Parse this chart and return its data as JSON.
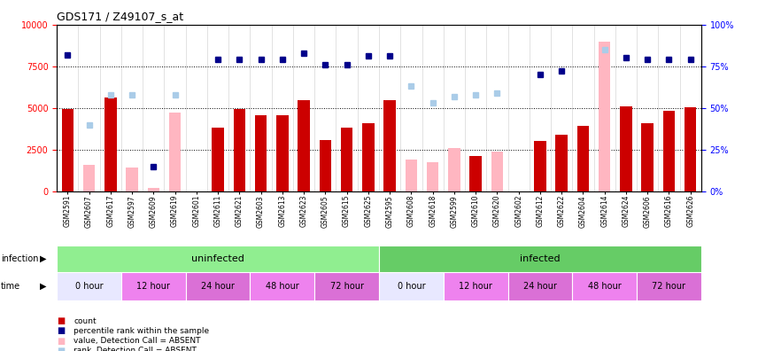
{
  "title": "GDS171 / Z49107_s_at",
  "samples": [
    "GSM2591",
    "GSM2607",
    "GSM2617",
    "GSM2597",
    "GSM2609",
    "GSM2619",
    "GSM2601",
    "GSM2611",
    "GSM2621",
    "GSM2603",
    "GSM2613",
    "GSM2623",
    "GSM2605",
    "GSM2615",
    "GSM2625",
    "GSM2595",
    "GSM2608",
    "GSM2618",
    "GSM2599",
    "GSM2610",
    "GSM2620",
    "GSM2602",
    "GSM2612",
    "GSM2622",
    "GSM2604",
    "GSM2614",
    "GSM2624",
    "GSM2606",
    "GSM2616",
    "GSM2626"
  ],
  "count_values": [
    4950,
    null,
    5600,
    null,
    null,
    null,
    null,
    3800,
    4950,
    4550,
    4550,
    5450,
    3050,
    3800,
    4100,
    5450,
    null,
    null,
    null,
    2100,
    null,
    null,
    3000,
    3400,
    3900,
    null,
    5100,
    4100,
    4850,
    5050
  ],
  "count_absent": [
    false,
    true,
    false,
    true,
    true,
    false,
    false,
    false,
    false,
    false,
    false,
    false,
    false,
    false,
    false,
    false,
    true,
    true,
    false,
    false,
    true,
    false,
    false,
    false,
    false,
    true,
    false,
    false,
    false,
    false
  ],
  "absent_bar_values": [
    null,
    1600,
    null,
    1450,
    200,
    4700,
    null,
    null,
    null,
    null,
    null,
    null,
    null,
    null,
    null,
    null,
    1900,
    1750,
    2600,
    null,
    2400,
    null,
    null,
    null,
    null,
    9000,
    null,
    null,
    null,
    null
  ],
  "rank_values": [
    8200,
    null,
    null,
    null,
    1500,
    null,
    null,
    7900,
    7900,
    7900,
    7900,
    8300,
    7600,
    7600,
    8100,
    8100,
    null,
    null,
    null,
    null,
    null,
    null,
    7000,
    7200,
    null,
    null,
    8000,
    7900,
    7900,
    7900
  ],
  "rank_absent": [
    false,
    true,
    true,
    true,
    false,
    true,
    false,
    false,
    false,
    false,
    false,
    false,
    false,
    false,
    false,
    false,
    true,
    true,
    true,
    true,
    true,
    false,
    false,
    false,
    false,
    true,
    false,
    false,
    false,
    false
  ],
  "absent_rank_values": [
    null,
    4000,
    5800,
    5800,
    null,
    5800,
    null,
    null,
    null,
    null,
    null,
    null,
    null,
    null,
    null,
    null,
    6300,
    5300,
    5700,
    5800,
    5900,
    null,
    null,
    null,
    null,
    8500,
    null,
    null,
    null,
    null
  ],
  "ylim_left": [
    0,
    10000
  ],
  "ylim_right": [
    0,
    100
  ],
  "yticks_left": [
    0,
    2500,
    5000,
    7500,
    10000
  ],
  "yticks_right": [
    0,
    25,
    50,
    75,
    100
  ],
  "infection_groups": [
    {
      "label": "uninfected",
      "start": 0,
      "end": 14,
      "color": "#90EE90"
    },
    {
      "label": "infected",
      "start": 15,
      "end": 29,
      "color": "#66CC66"
    }
  ],
  "time_groups": [
    {
      "label": "0 hour",
      "start": 0,
      "end": 2,
      "color": "#E8E8FF"
    },
    {
      "label": "12 hour",
      "start": 3,
      "end": 5,
      "color": "#EE82EE"
    },
    {
      "label": "24 hour",
      "start": 6,
      "end": 8,
      "color": "#DA70D6"
    },
    {
      "label": "48 hour",
      "start": 9,
      "end": 11,
      "color": "#EE82EE"
    },
    {
      "label": "72 hour",
      "start": 12,
      "end": 14,
      "color": "#DA70D6"
    },
    {
      "label": "0 hour",
      "start": 15,
      "end": 17,
      "color": "#E8E8FF"
    },
    {
      "label": "12 hour",
      "start": 18,
      "end": 20,
      "color": "#EE82EE"
    },
    {
      "label": "24 hour",
      "start": 21,
      "end": 23,
      "color": "#DA70D6"
    },
    {
      "label": "48 hour",
      "start": 24,
      "end": 26,
      "color": "#EE82EE"
    },
    {
      "label": "72 hour",
      "start": 27,
      "end": 29,
      "color": "#DA70D6"
    }
  ],
  "bar_color_present": "#CC0000",
  "bar_color_absent": "#FFB6C1",
  "rank_color_present": "#00008B",
  "rank_color_absent": "#AACCE8",
  "bg_color": "#FFFFFF",
  "plot_bg": "#FFFFFF",
  "bar_width": 0.55
}
